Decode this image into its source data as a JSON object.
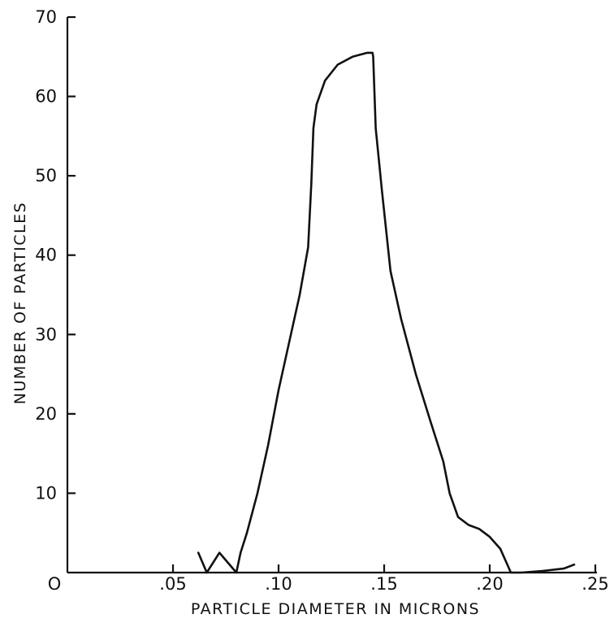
{
  "chart_data": {
    "type": "line",
    "title": "",
    "xlabel": "PARTICLE  DIAMETER  IN  MICRONS",
    "ylabel": "NUMBER OF PARTICLES",
    "xlim": [
      0,
      0.25
    ],
    "ylim": [
      0,
      70
    ],
    "grid": false,
    "x_ticks": [
      {
        "value": 0,
        "label": "O"
      },
      {
        "value": 0.05,
        "label": ".05"
      },
      {
        "value": 0.1,
        "label": ".10"
      },
      {
        "value": 0.15,
        "label": ".15"
      },
      {
        "value": 0.2,
        "label": ".20"
      },
      {
        "value": 0.25,
        "label": ".25"
      }
    ],
    "y_ticks": [
      {
        "value": 10,
        "label": "10"
      },
      {
        "value": 20,
        "label": "20"
      },
      {
        "value": 30,
        "label": "30"
      },
      {
        "value": 40,
        "label": "40"
      },
      {
        "value": 50,
        "label": "50"
      },
      {
        "value": 60,
        "label": "60"
      },
      {
        "value": 70,
        "label": "70"
      }
    ],
    "series": [
      {
        "x": [
          0.062,
          0.066,
          0.072,
          0.08,
          0.082,
          0.085,
          0.09,
          0.095,
          0.1,
          0.105,
          0.11,
          0.114,
          0.1155,
          0.1165,
          0.118,
          0.122,
          0.128,
          0.135,
          0.142,
          0.1445,
          0.1448,
          0.146,
          0.149,
          0.153,
          0.158,
          0.165,
          0.172,
          0.178,
          0.181,
          0.185,
          0.19,
          0.195,
          0.2,
          0.205,
          0.21,
          0.215,
          0.225,
          0.235,
          0.24
        ],
        "y": [
          2.5,
          0,
          2.5,
          0,
          2.5,
          5,
          10,
          16,
          23,
          29,
          35,
          41,
          49,
          56,
          59,
          62,
          64,
          65,
          65.5,
          65.5,
          65,
          56,
          48,
          38,
          32,
          25,
          19,
          14,
          10,
          7,
          6,
          5.5,
          4.5,
          3,
          0,
          0,
          0.2,
          0.5,
          1
        ]
      }
    ]
  }
}
